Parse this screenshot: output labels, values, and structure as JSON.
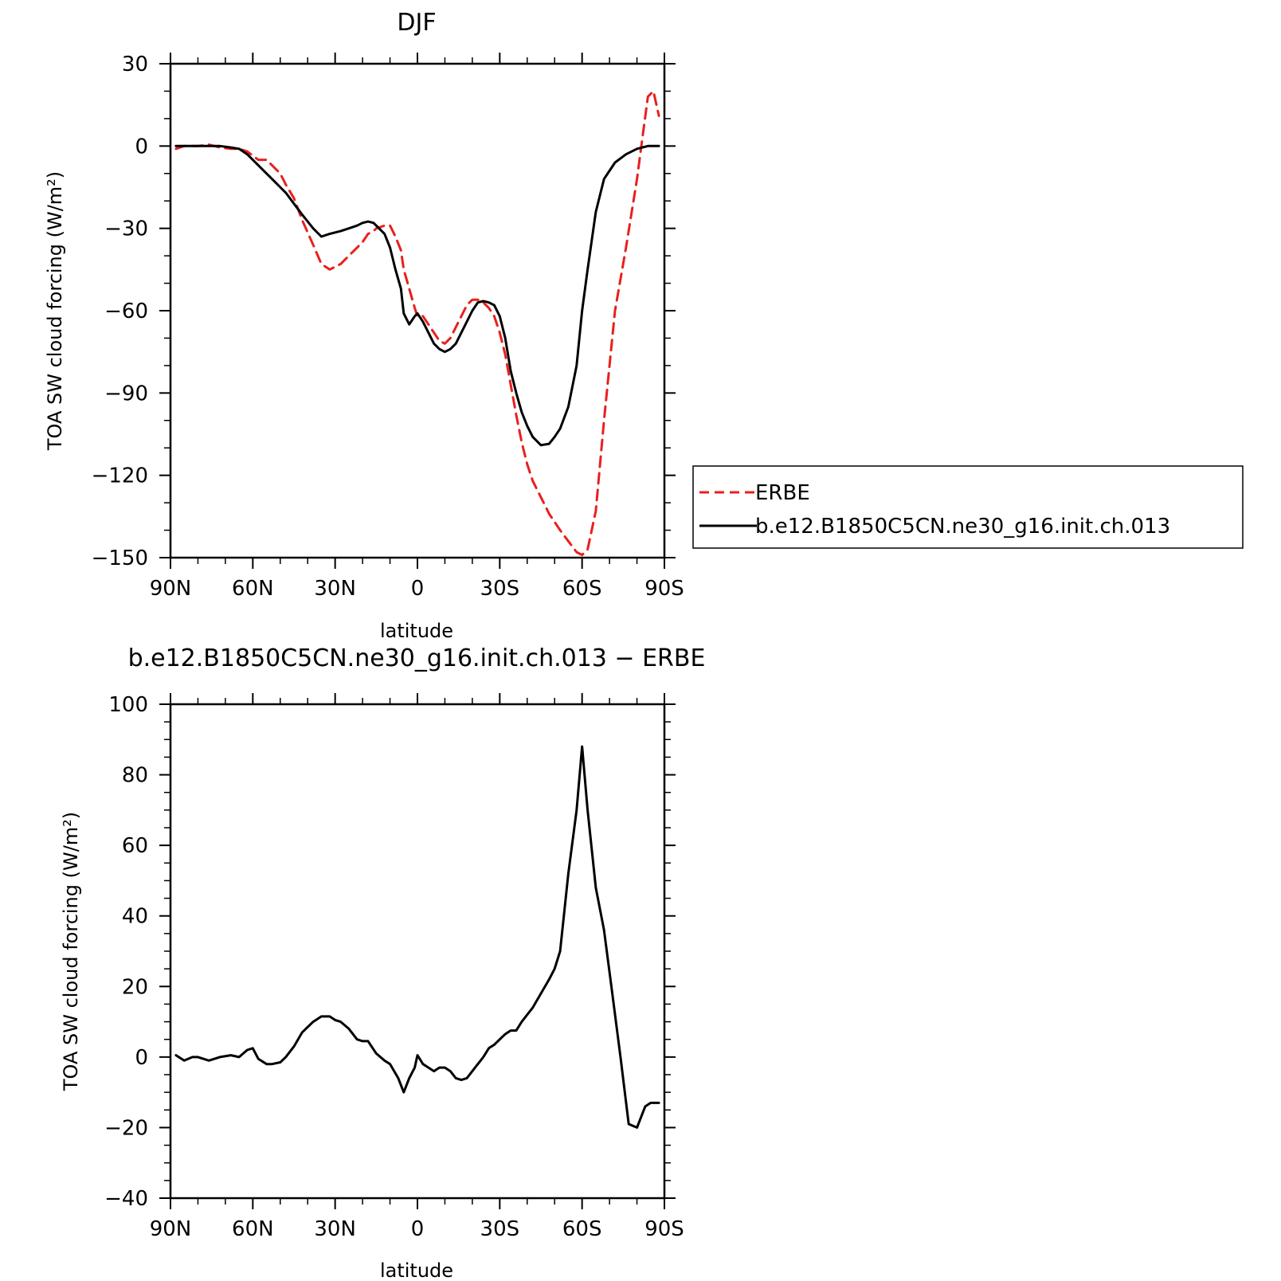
{
  "chart_data": [
    {
      "type": "line",
      "title": "DJF",
      "xlabel": "latitude",
      "ylabel": "TOA SW cloud forcing (W/m²)",
      "xlim": [
        90,
        -90
      ],
      "ylim": [
        -150,
        30
      ],
      "x_ticks": [
        90,
        60,
        30,
        0,
        -30,
        -60,
        -90
      ],
      "x_tick_labels": [
        "90N",
        "60N",
        "30N",
        "0",
        "30S",
        "60S",
        "90S"
      ],
      "y_ticks": [
        30,
        0,
        -30,
        -60,
        -90,
        -120,
        -150
      ],
      "y_tick_labels": [
        "30",
        "0",
        "−30",
        "−60",
        "−90",
        "−120",
        "−150"
      ],
      "legend_position": "right",
      "series": [
        {
          "name": "ERBE",
          "color": "#e8201e",
          "dash": true,
          "x": [
            88,
            85,
            80,
            76,
            72,
            68,
            65,
            62,
            58,
            55,
            52,
            50,
            48,
            45,
            42,
            38,
            35,
            32,
            30,
            28,
            25,
            22,
            20,
            18,
            16,
            15,
            12,
            10,
            8,
            6,
            5,
            3,
            1,
            0,
            -2,
            -4,
            -6,
            -8,
            -10,
            -12,
            -14,
            -16,
            -18,
            -20,
            -22,
            -24,
            -26,
            -28,
            -30,
            -32,
            -34,
            -36,
            -38,
            -40,
            -42,
            -45,
            -48,
            -50,
            -52,
            -55,
            -58,
            -60,
            -62,
            -65,
            -68,
            -72,
            -76,
            -80,
            -82,
            -84,
            -86,
            -88
          ],
          "y": [
            -1,
            0,
            0,
            0.5,
            -0.5,
            -1,
            -1,
            -2,
            -5,
            -5,
            -8,
            -10,
            -14,
            -19,
            -27,
            -36,
            -43,
            -45,
            -44,
            -43,
            -40,
            -37,
            -35,
            -32,
            -31,
            -30,
            -29,
            -29,
            -33,
            -38,
            -45,
            -52,
            -59,
            -62,
            -62,
            -65,
            -68,
            -71,
            -72,
            -70,
            -66,
            -62,
            -58,
            -56,
            -56,
            -57,
            -59,
            -62,
            -68,
            -76,
            -87,
            -98,
            -108,
            -116,
            -122,
            -128,
            -134,
            -137,
            -140,
            -144,
            -148,
            -149,
            -147,
            -133,
            -100,
            -60,
            -37,
            -12,
            3,
            18,
            20,
            11
          ]
        },
        {
          "name": "b.e12.B1850C5CN.ne30_g16.init.ch.013",
          "color": "#000000",
          "dash": false,
          "x": [
            88,
            85,
            80,
            76,
            72,
            68,
            65,
            62,
            58,
            55,
            52,
            50,
            48,
            45,
            42,
            38,
            35,
            32,
            30,
            28,
            25,
            22,
            20,
            18,
            16,
            15,
            12,
            10,
            8,
            6,
            5,
            3,
            1,
            0,
            -2,
            -4,
            -6,
            -8,
            -10,
            -12,
            -14,
            -16,
            -18,
            -20,
            -22,
            -24,
            -26,
            -28,
            -30,
            -32,
            -34,
            -36,
            -38,
            -40,
            -42,
            -45,
            -48,
            -50,
            -52,
            -55,
            -58,
            -60,
            -62,
            -65,
            -68,
            -72,
            -76,
            -80,
            -84,
            -88
          ],
          "y": [
            0,
            0,
            0,
            0,
            0,
            -0.5,
            -1,
            -3,
            -7,
            -10,
            -13,
            -15,
            -17,
            -21,
            -25,
            -30,
            -33,
            -32,
            -31.5,
            -31,
            -30,
            -29,
            -28,
            -27.5,
            -28,
            -29,
            -32,
            -37,
            -45,
            -52,
            -61,
            -65,
            -62,
            -61,
            -64,
            -68,
            -72,
            -74,
            -75,
            -74,
            -72,
            -68,
            -64,
            -60,
            -57,
            -56.5,
            -57,
            -58,
            -62,
            -70,
            -82,
            -90,
            -97,
            -102,
            -106,
            -109,
            -108.5,
            -106,
            -103,
            -95,
            -80,
            -60,
            -45,
            -24,
            -12,
            -6,
            -3,
            -1,
            0,
            0
          ]
        }
      ]
    },
    {
      "type": "line",
      "title": "b.e12.B1850C5CN.ne30_g16.init.ch.013 − ERBE",
      "xlabel": "latitude",
      "ylabel": "TOA SW cloud forcing (W/m²)",
      "xlim": [
        90,
        -90
      ],
      "ylim": [
        -40,
        100
      ],
      "x_ticks": [
        90,
        60,
        30,
        0,
        -30,
        -60,
        -90
      ],
      "x_tick_labels": [
        "90N",
        "60N",
        "30N",
        "0",
        "30S",
        "60S",
        "90S"
      ],
      "y_ticks": [
        100,
        80,
        60,
        40,
        20,
        0,
        -20,
        -40
      ],
      "y_tick_labels": [
        "100",
        "80",
        "60",
        "40",
        "20",
        "0",
        "−20",
        "−40"
      ],
      "series": [
        {
          "color": "#000000",
          "dash": false,
          "x": [
            88,
            85,
            82,
            80,
            76,
            72,
            68,
            65,
            62,
            60,
            58,
            55,
            53,
            50,
            48,
            45,
            42,
            38,
            35,
            32,
            30,
            28,
            25,
            22,
            20,
            18,
            15,
            12,
            10,
            7,
            5,
            3,
            1,
            0,
            -2,
            -4,
            -6,
            -8,
            -10,
            -12,
            -14,
            -16,
            -18,
            -20,
            -22,
            -24,
            -26,
            -28,
            -30,
            -32,
            -34,
            -36,
            -38,
            -40,
            -42,
            -45,
            -48,
            -50,
            -52,
            -55,
            -58,
            -60,
            -62,
            -65,
            -68,
            -71,
            -74,
            -77,
            -80,
            -83,
            -85,
            -86,
            -88
          ],
          "y": [
            0.5,
            -1,
            0,
            0,
            -1,
            0,
            0.5,
            0,
            2,
            2.5,
            -0.5,
            -2,
            -2,
            -1.5,
            0,
            3,
            7,
            10,
            11.5,
            11.5,
            10.5,
            10,
            8,
            5,
            4.5,
            4.5,
            1,
            -1,
            -2,
            -6,
            -10,
            -6,
            -3,
            0.5,
            -2,
            -3,
            -4,
            -3,
            -3,
            -4,
            -6,
            -6.5,
            -6,
            -4,
            -2,
            0,
            2.5,
            3.5,
            5,
            6.5,
            7.5,
            7.5,
            10,
            12,
            14,
            18,
            22,
            25,
            30,
            52,
            70,
            88,
            70,
            48,
            36,
            18,
            0,
            -19,
            -20,
            -14,
            -13,
            -13,
            -13
          ]
        }
      ]
    }
  ]
}
